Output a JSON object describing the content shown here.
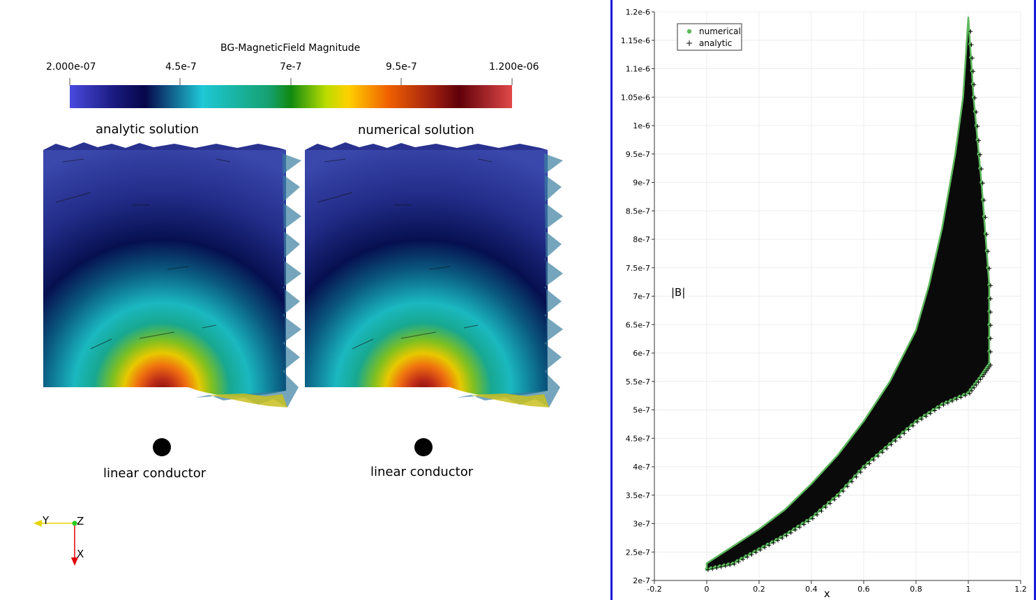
{
  "colorbar": {
    "title": "BG-MagneticField Magnitude",
    "tick_labels": [
      "2.000e-07",
      "4.5e-7",
      "7e-7",
      "9.5e-7",
      "1.200e-06"
    ]
  },
  "panels": [
    {
      "title": "analytic solution",
      "conductor_label": "linear conductor"
    },
    {
      "title": "numerical solution",
      "conductor_label": "linear conductor"
    }
  ],
  "orientation_axes": {
    "y": "Y",
    "z": "Z",
    "x": "X"
  },
  "colors": {
    "plot_border": "#1a1adc",
    "numerical_marker": "#5cb85c",
    "analytic_marker": "#000000",
    "axis_y": "#e6d500",
    "axis_x": "#e00000",
    "axis_z": "#22cc22"
  },
  "chart_data": {
    "type": "scatter",
    "xlabel": "x",
    "ylabel": "|B|",
    "xlim": [
      -0.2,
      1.2
    ],
    "ylim": [
      2e-07,
      1.2e-06
    ],
    "x_tick_labels": [
      "-0.2",
      "0",
      "0.2",
      "0.4",
      "0.6",
      "0.8",
      "1",
      "1.2"
    ],
    "y_tick_labels": [
      "2e-7",
      "2.5e-7",
      "3e-7",
      "3.5e-7",
      "4e-7",
      "4.5e-7",
      "5e-7",
      "5.5e-7",
      "6e-7",
      "6.5e-7",
      "7e-7",
      "7.5e-7",
      "8e-7",
      "8.5e-7",
      "9e-7",
      "9.5e-7",
      "1e-6",
      "1.05e-6",
      "1.1e-6",
      "1.15e-6",
      "1.2e-6"
    ],
    "grid": true,
    "legend_position": "top-left",
    "series": [
      {
        "name": "numerical",
        "marker": "circle"
      },
      {
        "name": "analytic",
        "marker": "plus"
      }
    ],
    "envelope_upper": [
      [
        0.0,
        2.3e-07
      ],
      [
        0.1,
        2.6e-07
      ],
      [
        0.2,
        2.9e-07
      ],
      [
        0.3,
        3.25e-07
      ],
      [
        0.4,
        3.7e-07
      ],
      [
        0.5,
        4.2e-07
      ],
      [
        0.6,
        4.8e-07
      ],
      [
        0.7,
        5.5e-07
      ],
      [
        0.8,
        6.4e-07
      ],
      [
        0.85,
        7.2e-07
      ],
      [
        0.9,
        8.2e-07
      ],
      [
        0.95,
        9.5e-07
      ],
      [
        0.98,
        1.05e-06
      ],
      [
        1.0,
        1.19e-06
      ]
    ],
    "envelope_lower": [
      [
        0.0,
        2.2e-07
      ],
      [
        0.1,
        2.3e-07
      ],
      [
        0.2,
        2.55e-07
      ],
      [
        0.3,
        2.8e-07
      ],
      [
        0.4,
        3.1e-07
      ],
      [
        0.5,
        3.5e-07
      ],
      [
        0.6,
        4e-07
      ],
      [
        0.7,
        4.4e-07
      ],
      [
        0.8,
        4.8e-07
      ],
      [
        0.9,
        5.1e-07
      ],
      [
        1.0,
        5.3e-07
      ],
      [
        1.05,
        5.6e-07
      ],
      [
        1.08,
        5.8e-07
      ],
      [
        1.08,
        7.2e-07
      ],
      [
        1.05,
        9e-07
      ],
      [
        1.02,
        1.05e-06
      ],
      [
        1.0,
        1.19e-06
      ]
    ]
  }
}
